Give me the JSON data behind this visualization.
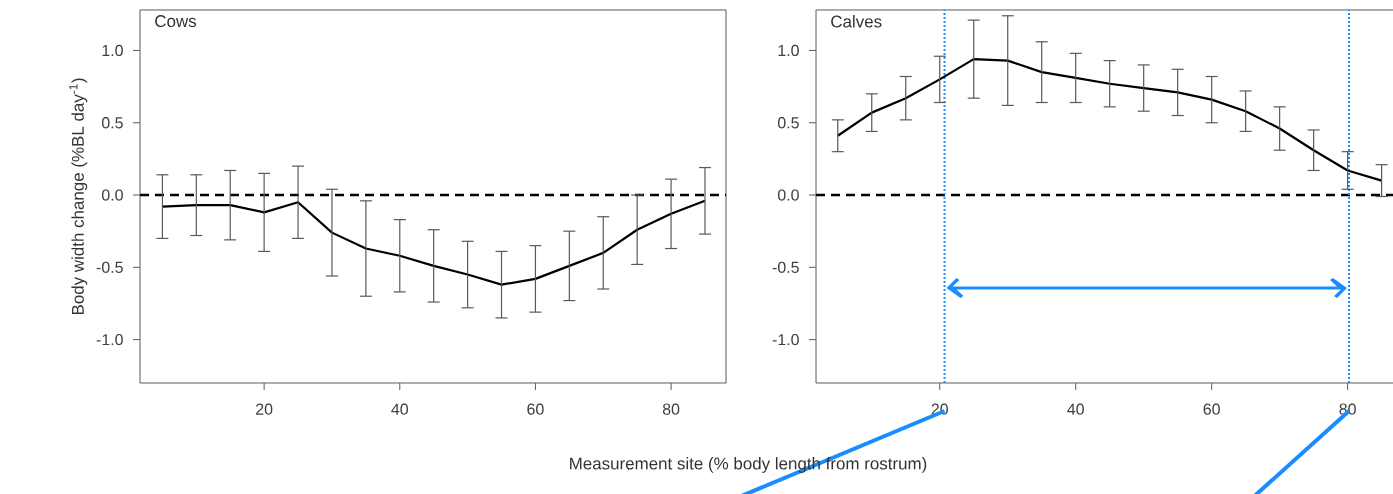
{
  "chart_data": [
    {
      "type": "line",
      "title": "Cows",
      "ylabel": "Body width change (%BL day$^{-1}$)",
      "xlabel": "Measurement site (% body length from rostrum)",
      "x": [
        5,
        10,
        15,
        20,
        25,
        30,
        35,
        40,
        45,
        50,
        55,
        60,
        65,
        70,
        75,
        80,
        85
      ],
      "series": [
        {
          "color": "#000000",
          "values": [
            -0.08,
            -0.07,
            -0.07,
            -0.12,
            -0.05,
            -0.26,
            -0.37,
            -0.42,
            -0.49,
            -0.55,
            -0.62,
            -0.58,
            -0.49,
            -0.4,
            -0.24,
            -0.13,
            -0.04
          ],
          "errors": [
            0.22,
            0.21,
            0.24,
            0.27,
            0.25,
            0.3,
            0.33,
            0.25,
            0.25,
            0.23,
            0.23,
            0.23,
            0.24,
            0.25,
            0.24,
            0.24,
            0.23
          ]
        }
      ],
      "xlim": [
        1.7,
        88.1
      ],
      "ylim": [
        -1.3,
        1.28
      ],
      "xticks": [
        20,
        40,
        60,
        80
      ],
      "yticks": [
        {
          "value": -1,
          "label": "-1.0"
        },
        {
          "value": -0.5,
          "label": "-0.5"
        },
        {
          "value": 0,
          "label": "0.0"
        },
        {
          "value": 0.5,
          "label": "0.5"
        },
        {
          "value": 1,
          "label": "1.0"
        }
      ],
      "ref_lines": [
        {
          "axis": "y",
          "value": 0,
          "color": "#000000",
          "line_style": "dashed"
        }
      ]
    },
    {
      "type": "line",
      "title": "Calves",
      "x": [
        5,
        10,
        15,
        20,
        25,
        30,
        35,
        40,
        45,
        50,
        55,
        60,
        65,
        70,
        75,
        80,
        85
      ],
      "series": [
        {
          "color": "#000000",
          "values": [
            0.41,
            0.57,
            0.67,
            0.8,
            0.94,
            0.93,
            0.85,
            0.81,
            0.77,
            0.74,
            0.71,
            0.66,
            0.58,
            0.46,
            0.31,
            0.17,
            0.1
          ],
          "errors": [
            0.11,
            0.13,
            0.15,
            0.16,
            0.27,
            0.31,
            0.21,
            0.17,
            0.16,
            0.16,
            0.16,
            0.16,
            0.14,
            0.15,
            0.14,
            0.13,
            0.11
          ]
        }
      ],
      "xlim": [
        1.8,
        88
      ],
      "ylim": [
        -1.3,
        1.28
      ],
      "xticks": [
        20,
        40,
        60,
        80
      ],
      "yticks": [
        {
          "value": -1,
          "label": "-1.0"
        },
        {
          "value": -0.5,
          "label": "-0.5"
        },
        {
          "value": 0,
          "label": "0.0"
        },
        {
          "value": 0.5,
          "label": "0.5"
        },
        {
          "value": 1,
          "label": "1.0"
        }
      ],
      "ref_lines": [
        {
          "axis": "y",
          "value": 0,
          "color": "#000000",
          "line_style": "dashed"
        },
        {
          "axis": "x",
          "value": 20.7,
          "color": "#1a8cff",
          "line_style": "dotted"
        },
        {
          "axis": "x",
          "value": 80.2,
          "color": "#1a8cff",
          "line_style": "dotted"
        }
      ]
    }
  ]
}
